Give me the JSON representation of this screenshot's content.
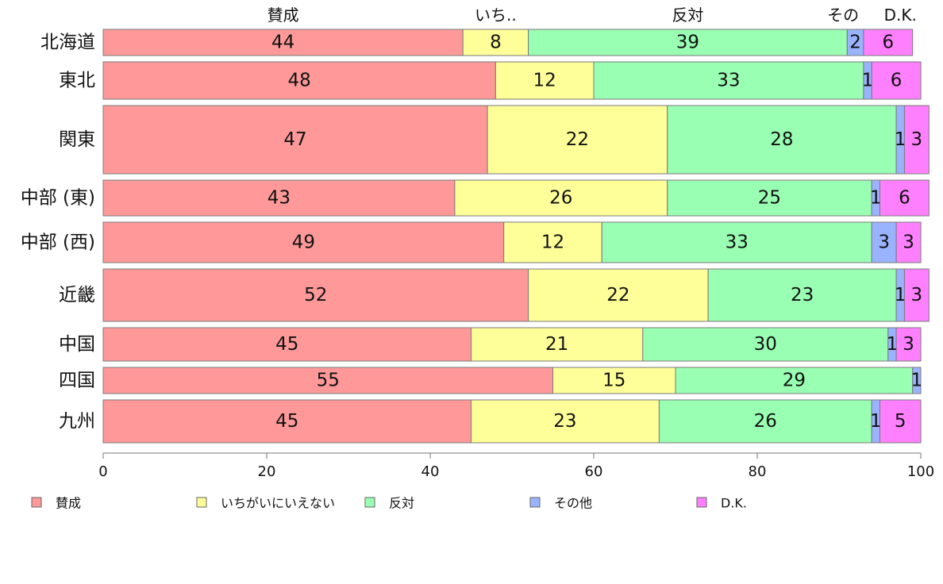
{
  "chart_data": {
    "type": "bar",
    "orientation": "horizontal",
    "stacked": true,
    "categories": [
      "北海道",
      "東北",
      "関東",
      "中部 (東)",
      "中部 (西)",
      "近畿",
      "中国",
      "四国",
      "九州"
    ],
    "series": [
      {
        "name": "賛成",
        "short": "賛成",
        "color": "#ff9999",
        "values": [
          44,
          48,
          47,
          43,
          49,
          52,
          45,
          55,
          45
        ]
      },
      {
        "name": "いちがいにいえない",
        "short": "いち..",
        "color": "#ffff99",
        "values": [
          8,
          12,
          22,
          26,
          12,
          22,
          21,
          15,
          23
        ]
      },
      {
        "name": "反対",
        "short": "反対",
        "color": "#99ffb3",
        "values": [
          39,
          33,
          28,
          25,
          33,
          23,
          30,
          29,
          26
        ]
      },
      {
        "name": "その他",
        "short": "その",
        "color": "#99b3ff",
        "values": [
          2,
          1,
          1,
          1,
          3,
          1,
          1,
          1,
          1
        ]
      },
      {
        "name": "D.K.",
        "short": "D.K.",
        "color": "#ff80ff",
        "values": [
          6,
          6,
          3,
          6,
          3,
          3,
          3,
          0,
          5
        ]
      }
    ],
    "xlim": [
      0,
      100
    ],
    "xticks": [
      0,
      20,
      40,
      60,
      80,
      100
    ],
    "legend_position": "bottom"
  }
}
